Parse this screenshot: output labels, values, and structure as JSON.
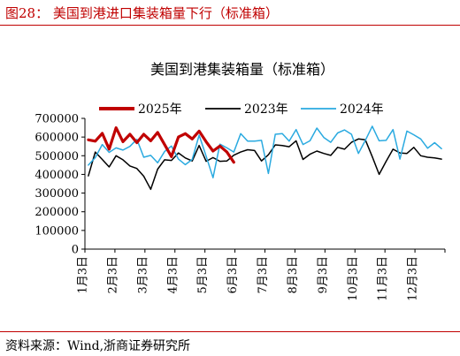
{
  "figure": {
    "title": "图28：   美国到港进口集装箱量下行（标准箱）",
    "source": "资料来源：Wind,浙商证券研究所"
  },
  "chart_data": {
    "type": "line",
    "title": "美国到港集装箱量（标准箱）",
    "xlabel": "",
    "ylabel": "",
    "ylim": [
      0,
      700000
    ],
    "yticks": [
      "0",
      "100000",
      "200000",
      "300000",
      "400000",
      "500000",
      "600000",
      "700000"
    ],
    "xticks": [
      "1月3日",
      "2月3日",
      "3月3日",
      "4月3日",
      "5月3日",
      "6月3日",
      "7月3日",
      "8月3日",
      "9月3日",
      "10月3日",
      "11月3日",
      "12月3日"
    ],
    "x_axis": "week of year (1-52)",
    "legend_position": "top",
    "series": [
      {
        "name": "2025年",
        "color": "#c00000",
        "values": [
          585000,
          578000,
          620000,
          535000,
          650000,
          575000,
          615000,
          570000,
          615000,
          580000,
          625000,
          560000,
          495000,
          600000,
          618000,
          590000,
          632000,
          575000,
          525000,
          552000,
          520000,
          465000
        ]
      },
      {
        "name": "2023年",
        "color": "#000000",
        "values": [
          392000,
          520000,
          480000,
          440000,
          500000,
          478000,
          445000,
          432000,
          390000,
          320000,
          428000,
          478000,
          475000,
          515000,
          488000,
          472000,
          555000,
          470000,
          490000,
          470000,
          472000,
          503000,
          520000,
          532000,
          528000,
          472000,
          505000,
          558000,
          555000,
          548000,
          580000,
          480000,
          508000,
          525000,
          512000,
          502000,
          545000,
          535000,
          572000,
          590000,
          585000,
          495000,
          400000,
          470000,
          535000,
          515000,
          512000,
          545000,
          500000,
          492000,
          488000,
          482000
        ]
      },
      {
        "name": "2024年",
        "color": "#2aaae0",
        "values": [
          450000,
          490000,
          560000,
          518000,
          542000,
          530000,
          550000,
          588000,
          492000,
          502000,
          462000,
          522000,
          552000,
          482000,
          452000,
          480000,
          610000,
          498000,
          382000,
          562000,
          542000,
          520000,
          618000,
          578000,
          578000,
          582000,
          405000,
          615000,
          618000,
          578000,
          640000,
          560000,
          580000,
          648000,
          598000,
          572000,
          622000,
          638000,
          615000,
          512000,
          582000,
          658000,
          580000,
          582000,
          640000,
          482000,
          632000,
          612000,
          590000,
          540000,
          570000,
          538000
        ]
      }
    ]
  }
}
